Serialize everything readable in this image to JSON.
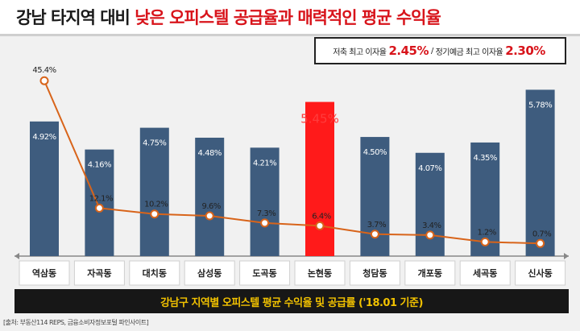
{
  "title": {
    "part1": "강남 타지역 대비 ",
    "part2": "낮은 오피스텔 공급율과 매력적인 평균 수익율"
  },
  "rate_box": {
    "label1": "저축 최고 이자율",
    "value1": "2.45%",
    "sep": "/",
    "label2": "정기예금 최고 이자율",
    "value2": "2.30%"
  },
  "caption": "강남구 지역별 오피스텔 평균 수익율 및 공급률 ('18.01 기준)",
  "source": "[출처: 부동산114 REPS, 금융소비자정보포털 파인사이트]",
  "colors": {
    "bar": "#3e5c7e",
    "highlight_bar": "#ff1a1a",
    "line": "#d8641a",
    "marker_fill": "#ffffff",
    "title_red": "#d8141b",
    "caption_text": "#f2c200"
  },
  "chart_data": {
    "type": "bar",
    "categories": [
      "역삼동",
      "자곡동",
      "대치동",
      "삼성동",
      "도곡동",
      "논현동",
      "청담동",
      "개포동",
      "세곡동",
      "신사동"
    ],
    "series": [
      {
        "type": "bar",
        "values": [
          4.92,
          4.16,
          4.75,
          4.48,
          4.21,
          5.45,
          4.5,
          4.07,
          4.35,
          5.78
        ],
        "labels": [
          "4.92%",
          "4.16%",
          "4.75%",
          "4.48%",
          "4.21%",
          "5.45%",
          "4.50%",
          "4.07%",
          "4.35%",
          "5.78%"
        ],
        "highlight_index": 5
      },
      {
        "type": "line",
        "values": [
          45.4,
          12.1,
          10.2,
          9.6,
          7.3,
          6.4,
          3.7,
          3.4,
          1.2,
          0.7
        ],
        "labels": [
          "45.4%",
          "12.1%",
          "10.2%",
          "9.6%",
          "7.3%",
          "6.4%",
          "3.7%",
          "3.4%",
          "1.2%",
          "0.7%"
        ]
      }
    ],
    "axis_labels": false,
    "grid": false,
    "legend": "none"
  }
}
